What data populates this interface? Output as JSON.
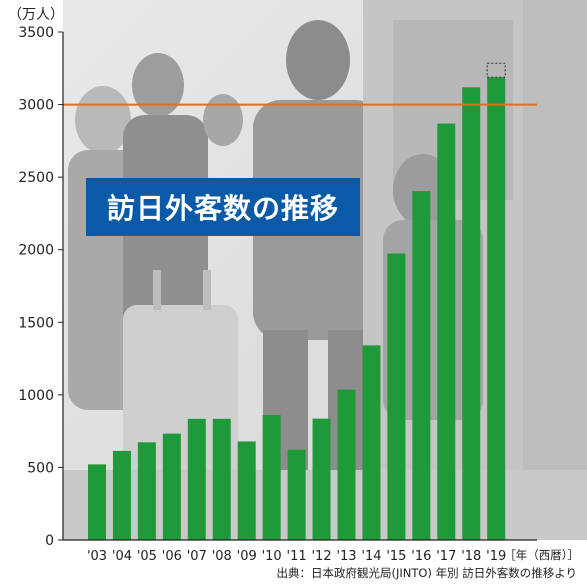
{
  "chart_data": {
    "type": "bar",
    "title": "訪日外客数の推移",
    "y_unit": "（万人）",
    "x_unit": "［年（西暦）］",
    "source": "出典：日本政府観光局(JINTO) 年別 訪日外客数の推移より",
    "categories": [
      "'03",
      "'04",
      "'05",
      "'06",
      "'07",
      "'08",
      "'09",
      "'10",
      "'11",
      "'12",
      "'13",
      "'14",
      "'15",
      "'16",
      "'17",
      "'18",
      "'19"
    ],
    "values": [
      521,
      614,
      673,
      733,
      835,
      835,
      679,
      861,
      622,
      836,
      1036,
      1341,
      1974,
      2404,
      2869,
      3119,
      3188
    ],
    "preliminary_note": "'19 bar top shown as dotted outline (partial year projection)",
    "y_ticks": [
      0,
      500,
      1000,
      1500,
      2000,
      2500,
      3000,
      3500
    ],
    "ylim": [
      0,
      3500
    ],
    "reference_line": 3000,
    "grid": false,
    "colors": {
      "bar": "#1f9a3a",
      "reference_line": "#e07020",
      "title_bg": "#0a5aa8",
      "axis": "#222222"
    }
  }
}
